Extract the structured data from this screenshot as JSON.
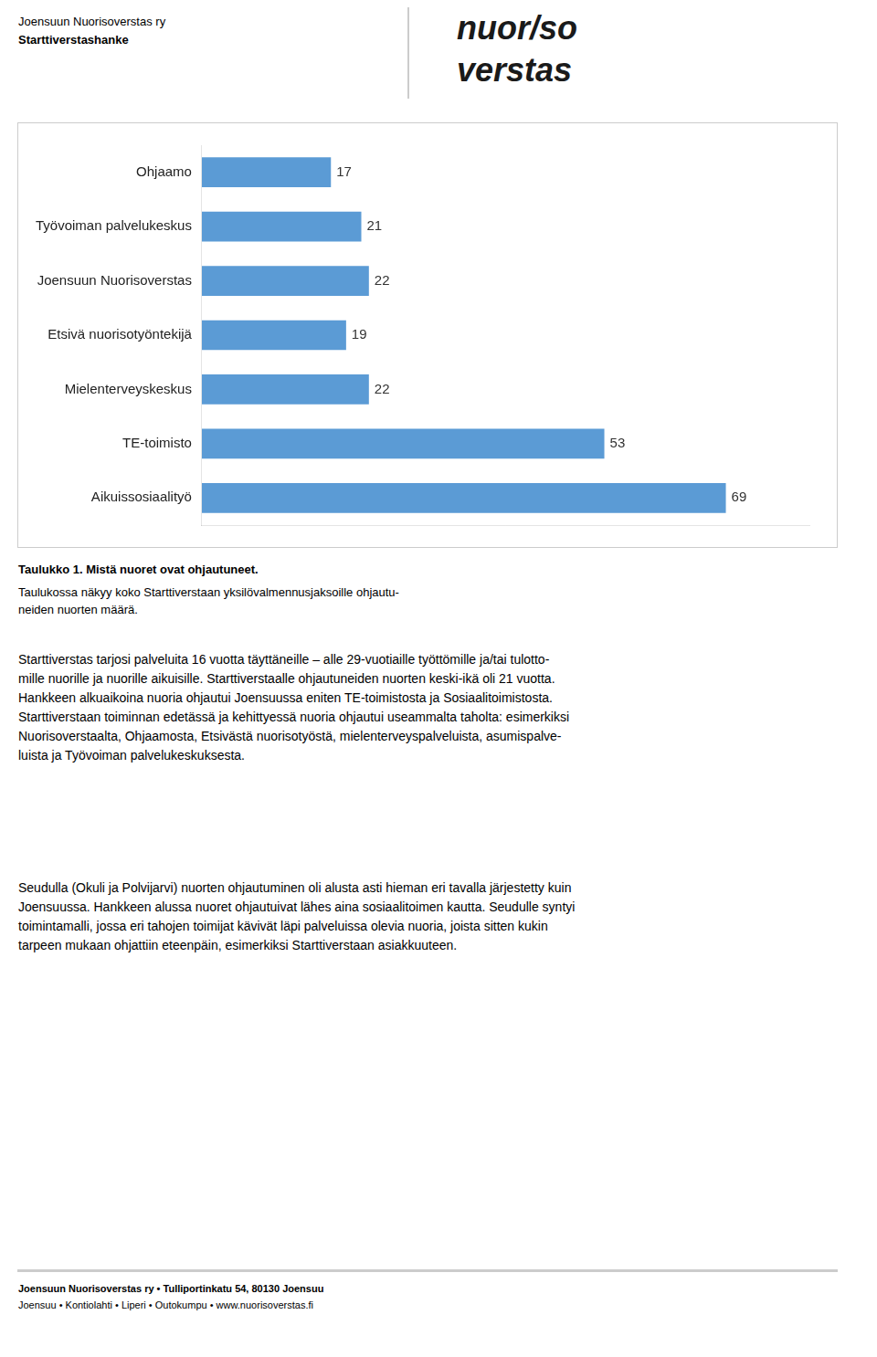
{
  "chart_data": {
    "type": "bar",
    "orientation": "horizontal",
    "categories": [
      "Ohjaamo",
      "Työvoiman palvelukeskus",
      "Joensuun Nuorisoverstas",
      "Etsivä nuorisotyöntekijä",
      "Mielenterveyskeskus",
      "TE-toimisto",
      "Aikuissosiaalityö"
    ],
    "values": [
      17,
      21,
      22,
      19,
      22,
      53,
      69
    ],
    "color": "#5b9bd5",
    "xlim": [
      0,
      80
    ],
    "grid": false,
    "data_labels": true,
    "tick_labels": "y",
    "annotations": [
      "Joensuun Nuorisoverstas ry",
      "Starttiverstashanke",
      "nuor/so",
      "verstas",
      "Taulukko 1. Mistä nuoret ovat ohjautuneet.",
      "Taulukossa näkyy koko Starttiverstaan yksilövalmennusjaksoille ohjautu-\nneiden nuorten määrä.",
      "Starttiverstas tarjosi palveluita 16 vuotta täyttäneille – alle 29-vuotiaille työttömille ja/tai tulotto-\nmille nuorille ja nuorille aikuisille. Starttiverstaalle ohjautuneiden nuorten keski-ikä oli 21 vuotta.\nHankkeen alkuaikoina nuoria ohjautui Joensuussa eniten TE-toimistosta ja Sosiaalitoimistosta.\nStarttiverstaan toiminnan edetässä ja kehittyessä nuoria ohjautui useammalta taholta: esimerkiksi\nNuorisoverstaalta, Ohjaamosta, Etsivästä nuorisotyöstä, mielenterveyspalveluista, asumispalve-\nluista ja Työvoiman palvelukeskuksesta.",
      "Seudulla (Okuli ja Polvijarvi) nuorten ohjautuminen oli alusta asti hieman eri tavalla järjestetty kuin\nJoensuussa. Hankkeen alussa nuoret ohjautuivat lähes aina sosiaalitoimen kautta. Seudulle syntyi\ntoimintamalli, jossa eri tahojen toimijat kävivät läpi palveluissa olevia nuoria, joista sitten kukin\ntarpeen mukaan ohjattiin eteenpäin, esimerkiksi Starttiverstaan asiakkuuteen.",
      "Joensuun Nuorisoverstas ry • Tulliportinkatu 54, 80130 Joensuu",
      "Joensuu • Kontiolahti • Liperi • Outokumpu • www.nuorisoverstas.fi"
    ]
  }
}
